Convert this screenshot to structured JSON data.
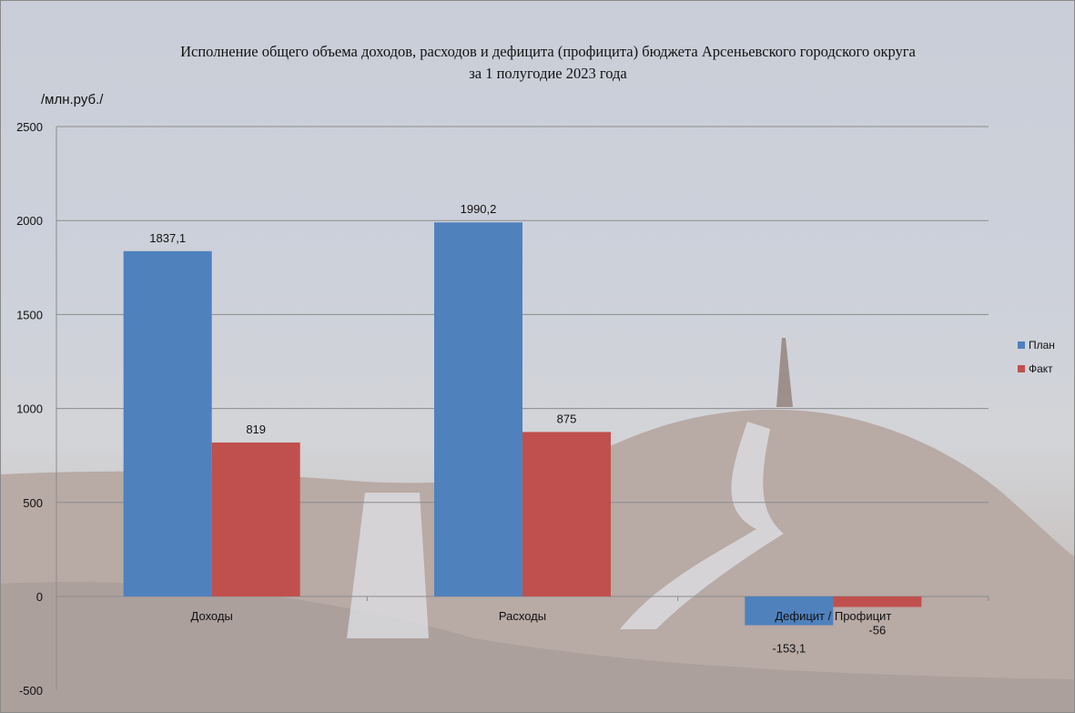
{
  "colors": {
    "plan": "#4f81bd",
    "fakt": "#c0504d",
    "grid": "#8c8c8c"
  },
  "chart_data": {
    "type": "bar",
    "title": "Исполнение  общего объема  доходов, расходов и дефицита  (профицита)  бюджета Арсеньевского городского округа",
    "subtitle": "за 1 полугодие 2023  года",
    "ylabel": "/млн.руб./",
    "xlabel": "",
    "ylim": [
      -500,
      2500
    ],
    "yticks": [
      2500,
      2000,
      1500,
      1000,
      500,
      0,
      -500
    ],
    "grid": true,
    "legend_position": "right",
    "categories": [
      "Доходы",
      "Расходы",
      "Дефицит / Профицит"
    ],
    "series": [
      {
        "name": "План",
        "values": [
          1837.1,
          1990.2,
          -153.1
        ],
        "labels": [
          "1837,1",
          "1990,2",
          "-153,1"
        ]
      },
      {
        "name": "Факт",
        "values": [
          819,
          875,
          -56
        ],
        "labels": [
          "819",
          "875",
          "-56"
        ]
      }
    ]
  }
}
